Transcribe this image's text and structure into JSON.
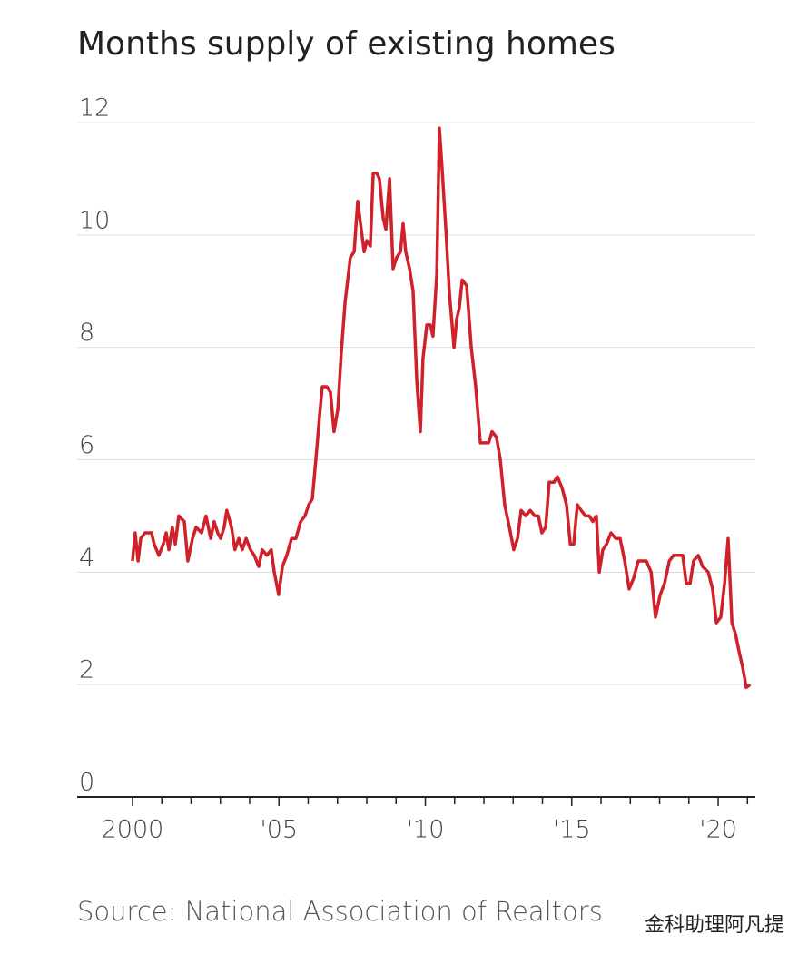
{
  "chart_data": {
    "type": "line",
    "title": "Months supply of existing homes",
    "source": "Source: National Association of Realtors",
    "watermark": "金科助理阿凡提",
    "ylim": [
      0,
      12
    ],
    "yticks": [
      0,
      2,
      4,
      6,
      8,
      10,
      12
    ],
    "grid": true,
    "xlim": [
      1998.11,
      2021.27
    ],
    "xticks": [
      {
        "value": 2000,
        "label": "2000"
      },
      {
        "value": 2005,
        "label": "'05"
      },
      {
        "value": 2010,
        "label": "'10"
      },
      {
        "value": 2015,
        "label": "'15"
      },
      {
        "value": 2020,
        "label": "'20"
      }
    ],
    "xminorticks": [
      2001,
      2002,
      2003,
      2004,
      2006,
      2007,
      2008,
      2009,
      2011,
      2012,
      2013,
      2014,
      2016,
      2017,
      2018,
      2019,
      2021
    ],
    "series": [
      {
        "color": "#d0202a",
        "x": [
          2000.0,
          2000.09,
          2000.19,
          2000.28,
          2000.43,
          2000.65,
          2000.74,
          2000.9,
          2001.05,
          2001.15,
          2001.24,
          2001.36,
          2001.46,
          2001.58,
          2001.77,
          2001.89,
          2002.05,
          2002.17,
          2002.36,
          2002.51,
          2002.67,
          2002.79,
          2002.91,
          2003.01,
          2003.13,
          2003.22,
          2003.38,
          2003.5,
          2003.63,
          2003.75,
          2003.88,
          2004.03,
          2004.16,
          2004.31,
          2004.43,
          2004.59,
          2004.74,
          2004.84,
          2004.99,
          2005.12,
          2005.27,
          2005.43,
          2005.58,
          2005.74,
          2005.89,
          2006.02,
          2006.14,
          2006.26,
          2006.39,
          2006.48,
          2006.64,
          2006.76,
          2006.88,
          2007.01,
          2007.13,
          2007.26,
          2007.35,
          2007.44,
          2007.57,
          2007.69,
          2007.81,
          2007.91,
          2008.0,
          2008.12,
          2008.22,
          2008.34,
          2008.43,
          2008.56,
          2008.65,
          2008.78,
          2008.9,
          2009.02,
          2009.15,
          2009.24,
          2009.33,
          2009.46,
          2009.58,
          2009.71,
          2009.83,
          2009.92,
          2010.05,
          2010.17,
          2010.26,
          2010.39,
          2010.48,
          2010.57,
          2010.7,
          2010.82,
          2010.98,
          2011.07,
          2011.16,
          2011.26,
          2011.41,
          2011.57,
          2011.72,
          2011.88,
          2012.0,
          2012.16,
          2012.28,
          2012.43,
          2012.56,
          2012.71,
          2012.87,
          2013.02,
          2013.15,
          2013.27,
          2013.43,
          2013.58,
          2013.74,
          2013.86,
          2013.98,
          2014.11,
          2014.23,
          2014.39,
          2014.51,
          2014.67,
          2014.82,
          2014.95,
          2015.07,
          2015.19,
          2015.32,
          2015.47,
          2015.6,
          2015.72,
          2015.84,
          2015.94,
          2016.06,
          2016.19,
          2016.34,
          2016.5,
          2016.65,
          2016.81,
          2016.96,
          2017.12,
          2017.27,
          2017.43,
          2017.55,
          2017.71,
          2017.86,
          2018.02,
          2018.17,
          2018.33,
          2018.48,
          2018.64,
          2018.79,
          2018.91,
          2019.04,
          2019.16,
          2019.32,
          2019.47,
          2019.66,
          2019.81,
          2019.94,
          2020.09,
          2020.22,
          2020.34,
          2020.47,
          2020.59,
          2020.71,
          2020.84,
          2020.96,
          2021.09
        ],
        "values": [
          4.2,
          4.7,
          4.2,
          4.6,
          4.7,
          4.7,
          4.5,
          4.3,
          4.5,
          4.7,
          4.4,
          4.8,
          4.5,
          5.0,
          4.9,
          4.2,
          4.6,
          4.8,
          4.7,
          5.0,
          4.6,
          4.9,
          4.7,
          4.6,
          4.8,
          5.1,
          4.8,
          4.4,
          4.6,
          4.4,
          4.6,
          4.4,
          4.3,
          4.1,
          4.4,
          4.3,
          4.4,
          4.0,
          3.6,
          4.1,
          4.3,
          4.6,
          4.6,
          4.9,
          5.0,
          5.2,
          5.3,
          6.0,
          6.8,
          7.3,
          7.3,
          7.2,
          6.5,
          6.9,
          7.9,
          8.8,
          9.2,
          9.6,
          9.7,
          10.6,
          10.1,
          9.7,
          9.9,
          9.8,
          11.1,
          11.1,
          11.0,
          10.3,
          10.1,
          11.0,
          9.4,
          9.6,
          9.7,
          10.2,
          9.7,
          9.4,
          9.0,
          7.4,
          6.5,
          7.8,
          8.4,
          8.4,
          8.2,
          9.3,
          11.9,
          11.2,
          10.1,
          9.0,
          8.0,
          8.5,
          8.7,
          9.2,
          9.1,
          8.0,
          7.3,
          6.3,
          6.3,
          6.3,
          6.5,
          6.4,
          6.0,
          5.2,
          4.8,
          4.4,
          4.6,
          5.1,
          5.0,
          5.1,
          5.0,
          5.0,
          4.7,
          4.8,
          5.6,
          5.6,
          5.7,
          5.5,
          5.2,
          4.5,
          4.5,
          5.2,
          5.1,
          5.0,
          5.0,
          4.9,
          5.0,
          4.0,
          4.4,
          4.5,
          4.7,
          4.6,
          4.6,
          4.2,
          3.7,
          3.9,
          4.2,
          4.2,
          4.2,
          4.0,
          3.2,
          3.6,
          3.8,
          4.2,
          4.3,
          4.3,
          4.3,
          3.8,
          3.8,
          4.2,
          4.3,
          4.1,
          4.0,
          3.7,
          3.1,
          3.2,
          3.8,
          4.6,
          3.1,
          2.9,
          2.6,
          2.3,
          1.95,
          2.0
        ]
      }
    ]
  }
}
